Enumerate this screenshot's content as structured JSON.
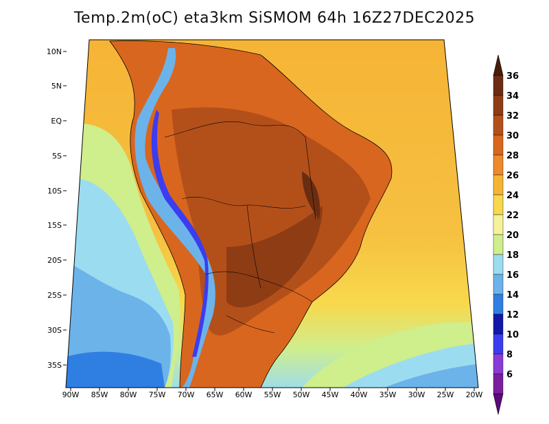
{
  "title": "Temp.2m(oC) eta3km SiSMOM 64h 16Z27DEC2025",
  "map": {
    "lat_ticks": [
      "10N",
      "5N",
      "EQ",
      "5S",
      "10S",
      "15S",
      "20S",
      "25S",
      "30S",
      "35S"
    ],
    "lon_ticks": [
      "90W",
      "85W",
      "80W",
      "75W",
      "70W",
      "65W",
      "60W",
      "55W",
      "50W",
      "45W",
      "40W",
      "35W",
      "30W",
      "25W",
      "20W"
    ]
  },
  "colorbar": {
    "labels": [
      "36",
      "34",
      "32",
      "30",
      "28",
      "26",
      "24",
      "22",
      "20",
      "18",
      "16",
      "14",
      "12",
      "10",
      "8",
      "6"
    ],
    "colors": [
      "#6b2d12",
      "#8e3c14",
      "#b3501a",
      "#d9661f",
      "#ee8a2a",
      "#f6b436",
      "#f8d84c",
      "#f5f29a",
      "#cfee8c",
      "#9bdcf0",
      "#6cb3ea",
      "#2f7fe3",
      "#1218a8",
      "#3c3cf0",
      "#8a3bd6",
      "#7a1d9e"
    ],
    "top_arrow_color": "#4a1c0a",
    "bottom_arrow_color": "#5b0a7a"
  }
}
